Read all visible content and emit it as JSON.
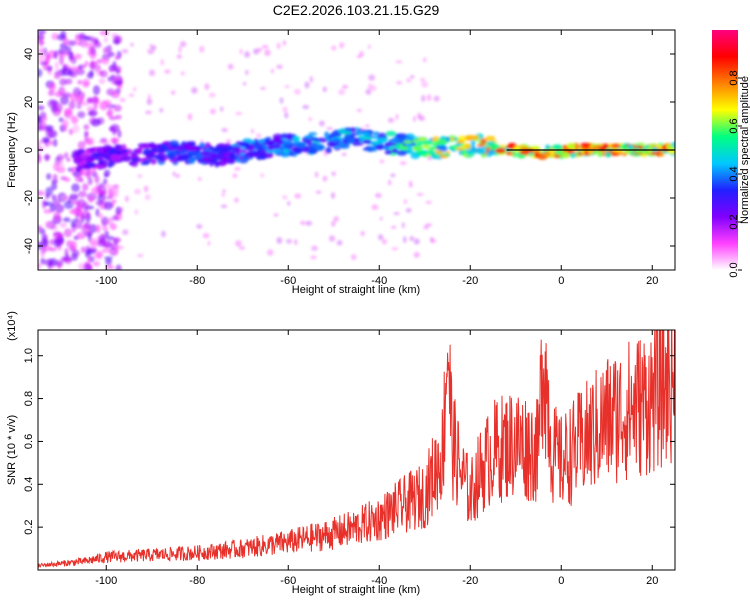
{
  "title": "C2E2.2026.103.21.15.G29",
  "chart_data": [
    {
      "type": "heatmap",
      "xlabel": "Height of straight line (km)",
      "ylabel": "Frequency (Hz)",
      "xlim": [
        -115,
        25
      ],
      "ylim": [
        -50,
        50
      ],
      "xticks": [
        -100,
        -80,
        -60,
        -40,
        -20,
        0,
        20
      ],
      "yticks": [
        -40,
        -20,
        0,
        20,
        40
      ],
      "colorbar": {
        "label": "Normalized spectral amplitude",
        "range": [
          0.0,
          1.0
        ],
        "ticks": [
          0.0,
          0.2,
          0.4,
          0.6,
          0.8
        ],
        "colors": [
          "#ffffff",
          "#ff40ff",
          "#8000ff",
          "#2020ff",
          "#00c8ff",
          "#00ff80",
          "#ffff00",
          "#ff8000",
          "#ff0000",
          "#ff0080"
        ]
      },
      "ridge": {
        "x": [
          -105,
          -95,
          -85,
          -75,
          -65,
          -55,
          -45,
          -38,
          -30,
          -22,
          -18,
          -12,
          -5,
          5,
          15,
          25
        ],
        "freq": [
          -4,
          -2,
          -1,
          -2,
          1,
          3,
          5,
          3,
          1,
          1,
          2,
          0,
          -1,
          0,
          0,
          0
        ],
        "amplitude": [
          0.3,
          0.35,
          0.4,
          0.4,
          0.45,
          0.5,
          0.5,
          0.55,
          0.7,
          0.8,
          0.8,
          0.9,
          0.9,
          0.9,
          0.9,
          0.9
        ]
      },
      "reference_line": {
        "freq": 0,
        "x_range": [
          -12,
          25
        ]
      }
    },
    {
      "type": "line",
      "xlabel": "Height of straight line (km)",
      "ylabel": "SNR (10 * v/v)",
      "y_multiplier": "(x10⁴)",
      "xlim": [
        -115,
        25
      ],
      "ylim": [
        0,
        1.12
      ],
      "xticks": [
        -100,
        -80,
        -60,
        -40,
        -20,
        0,
        20
      ],
      "yticks": [
        0.2,
        0.4,
        0.6,
        0.8,
        1.0
      ],
      "color": "#e8302a",
      "series": [
        {
          "x": [
            -115,
            -105,
            -100,
            -90,
            -80,
            -70,
            -60,
            -50,
            -45,
            -40,
            -35,
            -30,
            -26,
            -25,
            -24,
            -22,
            -20,
            -18,
            -15,
            -10,
            -5,
            -4,
            -2,
            0,
            5,
            10,
            15,
            20,
            25
          ],
          "y": [
            0.02,
            0.04,
            0.06,
            0.07,
            0.08,
            0.1,
            0.13,
            0.17,
            0.2,
            0.24,
            0.3,
            0.35,
            0.55,
            1.1,
            0.6,
            0.45,
            0.35,
            0.45,
            0.55,
            0.6,
            0.55,
            1.05,
            0.55,
            0.5,
            0.6,
            0.7,
            0.75,
            0.8,
            0.92
          ]
        }
      ]
    }
  ]
}
